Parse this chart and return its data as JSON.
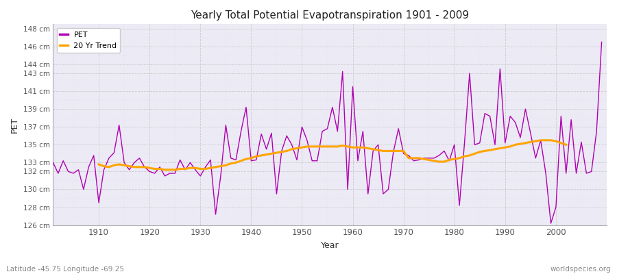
{
  "title": "Yearly Total Potential Evapotranspiration 1901 - 2009",
  "xlabel": "Year",
  "ylabel": "PET",
  "subtitle": "Latitude -45.75 Longitude -69.25",
  "watermark": "worldspecies.org",
  "pet_color": "#b000b0",
  "trend_color": "#FFA500",
  "background_color": "#f0eef8",
  "plot_bg_color": "#eceaf5",
  "fig_bg_color": "#ffffff",
  "ylim_min": 126,
  "ylim_max": 148.5,
  "xlim_min": 1901,
  "xlim_max": 2010,
  "yticks": [
    126,
    128,
    130,
    132,
    133,
    135,
    137,
    139,
    141,
    143,
    144,
    146,
    148
  ],
  "xticks": [
    1910,
    1920,
    1930,
    1940,
    1950,
    1960,
    1970,
    1980,
    1990,
    2000
  ],
  "years": [
    1901,
    1902,
    1903,
    1904,
    1905,
    1906,
    1907,
    1908,
    1909,
    1910,
    1911,
    1912,
    1913,
    1914,
    1915,
    1916,
    1917,
    1918,
    1919,
    1920,
    1921,
    1922,
    1923,
    1924,
    1925,
    1926,
    1927,
    1928,
    1929,
    1930,
    1931,
    1932,
    1933,
    1934,
    1935,
    1936,
    1937,
    1938,
    1939,
    1940,
    1941,
    1942,
    1943,
    1944,
    1945,
    1946,
    1947,
    1948,
    1949,
    1950,
    1951,
    1952,
    1953,
    1954,
    1955,
    1956,
    1957,
    1958,
    1959,
    1960,
    1961,
    1962,
    1963,
    1964,
    1965,
    1966,
    1967,
    1968,
    1969,
    1970,
    1971,
    1972,
    1973,
    1974,
    1975,
    1976,
    1977,
    1978,
    1979,
    1980,
    1981,
    1982,
    1983,
    1984,
    1985,
    1986,
    1987,
    1988,
    1989,
    1990,
    1991,
    1992,
    1993,
    1994,
    1995,
    1996,
    1997,
    1998,
    1999,
    2000,
    2001,
    2002,
    2003,
    2004,
    2005,
    2006,
    2007,
    2008,
    2009
  ],
  "pet_values": [
    133.0,
    131.8,
    133.2,
    132.0,
    131.8,
    132.2,
    130.0,
    132.5,
    133.8,
    128.5,
    132.2,
    133.5,
    134.1,
    137.2,
    133.0,
    132.2,
    133.0,
    133.5,
    132.5,
    132.0,
    131.8,
    132.5,
    131.5,
    131.8,
    131.8,
    133.3,
    132.2,
    133.0,
    132.2,
    131.5,
    132.5,
    133.3,
    127.2,
    131.5,
    137.2,
    133.5,
    133.3,
    136.5,
    139.2,
    133.2,
    133.3,
    136.2,
    134.5,
    136.3,
    129.5,
    134.3,
    136.0,
    135.0,
    133.3,
    137.0,
    135.5,
    133.2,
    133.2,
    136.5,
    136.8,
    139.2,
    136.5,
    143.2,
    130.0,
    141.5,
    133.2,
    136.5,
    129.5,
    134.3,
    135.0,
    129.5,
    130.0,
    134.2,
    136.8,
    134.0,
    133.8,
    133.2,
    133.3,
    133.5,
    133.5,
    133.5,
    133.8,
    134.3,
    133.2,
    135.0,
    128.2,
    135.2,
    143.0,
    135.0,
    135.2,
    138.5,
    138.2,
    135.0,
    143.5,
    135.2,
    138.2,
    137.5,
    135.8,
    139.0,
    136.3,
    133.5,
    135.5,
    131.8,
    126.2,
    128.0,
    138.2,
    131.8,
    137.8,
    131.8,
    135.3,
    131.8,
    132.0,
    136.5,
    146.5
  ],
  "trend_values": [
    null,
    null,
    null,
    null,
    null,
    null,
    null,
    null,
    null,
    132.8,
    132.6,
    132.5,
    132.7,
    132.8,
    132.7,
    132.6,
    132.5,
    132.5,
    132.5,
    132.4,
    132.3,
    132.3,
    132.2,
    132.2,
    132.2,
    132.3,
    132.3,
    132.4,
    132.4,
    132.3,
    132.3,
    132.4,
    132.5,
    132.6,
    132.7,
    132.9,
    133.0,
    133.2,
    133.4,
    133.5,
    133.7,
    133.8,
    133.9,
    134.0,
    134.1,
    134.2,
    134.3,
    134.5,
    134.6,
    134.7,
    134.8,
    134.8,
    134.8,
    134.8,
    134.8,
    134.8,
    134.8,
    134.9,
    134.8,
    134.7,
    134.7,
    134.7,
    134.6,
    134.5,
    134.4,
    134.3,
    134.3,
    134.3,
    134.3,
    134.3,
    133.5,
    133.5,
    133.5,
    133.4,
    133.3,
    133.2,
    133.1,
    133.1,
    133.3,
    133.4,
    133.5,
    133.7,
    133.8,
    134.0,
    134.2,
    134.3,
    134.4,
    134.5,
    134.6,
    134.7,
    134.8,
    135.0,
    135.1,
    135.2,
    135.3,
    135.4,
    135.5,
    135.5,
    135.5,
    135.4,
    135.2,
    135.0,
    null,
    null,
    null,
    null,
    null,
    null,
    null
  ]
}
